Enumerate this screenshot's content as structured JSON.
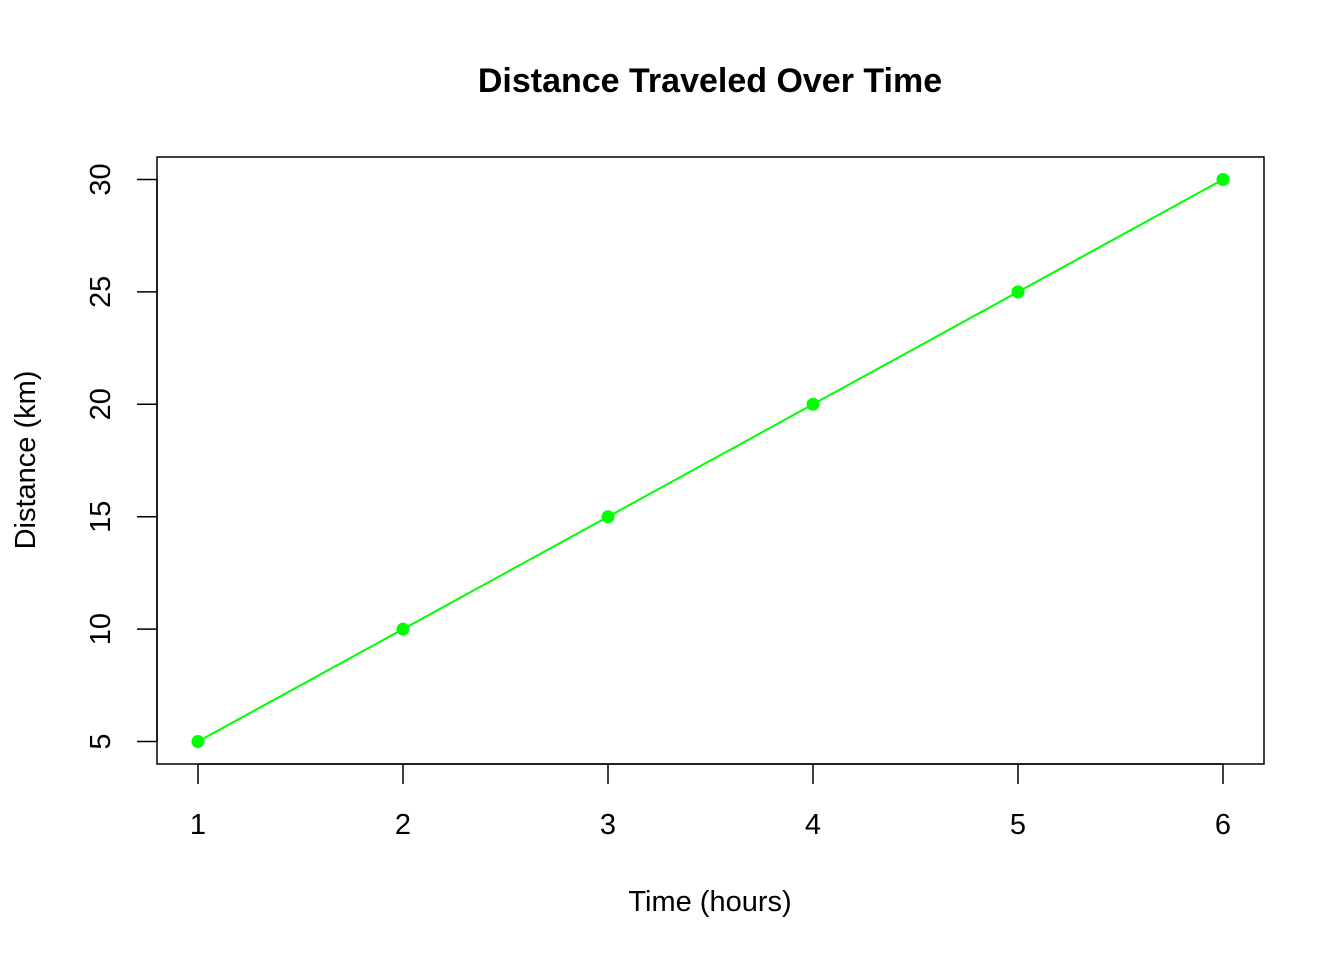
{
  "chart_data": {
    "type": "line",
    "title": "Distance Traveled Over Time",
    "xlabel": "Time (hours)",
    "ylabel": "Distance (km)",
    "x": [
      1,
      2,
      3,
      4,
      5,
      6
    ],
    "series": [
      {
        "values": [
          5,
          10,
          15,
          20,
          25,
          30
        ],
        "color": "#00ff00",
        "markers": "filled-circle"
      }
    ],
    "x_ticks": [
      "1",
      "2",
      "3",
      "4",
      "5",
      "6"
    ],
    "y_ticks": [
      "5",
      "10",
      "15",
      "20",
      "25",
      "30"
    ],
    "xlim": [
      0.8,
      6.2
    ],
    "ylim": [
      4,
      31
    ],
    "grid": false,
    "legend": "none"
  }
}
